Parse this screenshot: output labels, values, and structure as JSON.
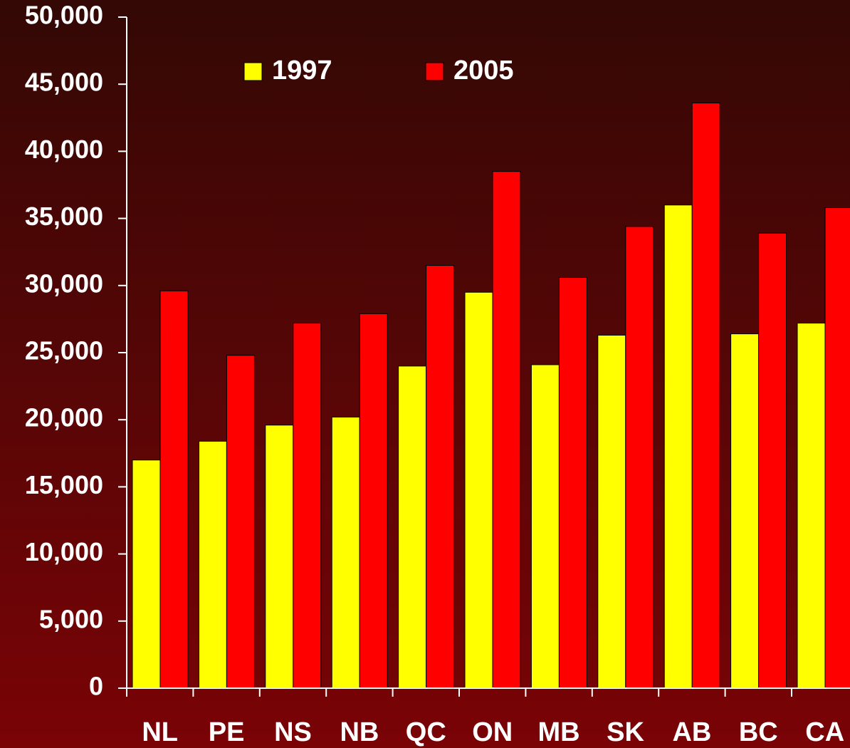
{
  "chart_data": {
    "type": "bar",
    "categories": [
      "NL",
      "PE",
      "NS",
      "NB",
      "QC",
      "ON",
      "MB",
      "SK",
      "AB",
      "BC",
      "CA"
    ],
    "series": [
      {
        "name": "1997",
        "color": "#ffff00",
        "values": [
          17000,
          18400,
          19600,
          20200,
          24000,
          29500,
          24100,
          26300,
          36000,
          26400,
          27200
        ]
      },
      {
        "name": "2005",
        "color": "#ff0000",
        "values": [
          29600,
          24800,
          27200,
          27900,
          31500,
          38500,
          30600,
          34400,
          43600,
          33900,
          35800
        ]
      }
    ],
    "ylim": [
      0,
      50000
    ],
    "yticks": [
      0,
      {
        "value": 5000,
        "label": "5,000"
      },
      {
        "value": 10000,
        "label": "10,000"
      },
      {
        "value": 15000,
        "label": "15,000"
      },
      {
        "value": 20000,
        "label": "20,000"
      },
      {
        "value": 25000,
        "label": "25,000"
      },
      {
        "value": 30000,
        "label": "30,000"
      },
      {
        "value": 35000,
        "label": "35,000"
      },
      {
        "value": 40000,
        "label": "40,000"
      },
      {
        "value": 45000,
        "label": "45,000"
      },
      {
        "value": 50000,
        "label": "50,000"
      }
    ],
    "grid": false
  }
}
